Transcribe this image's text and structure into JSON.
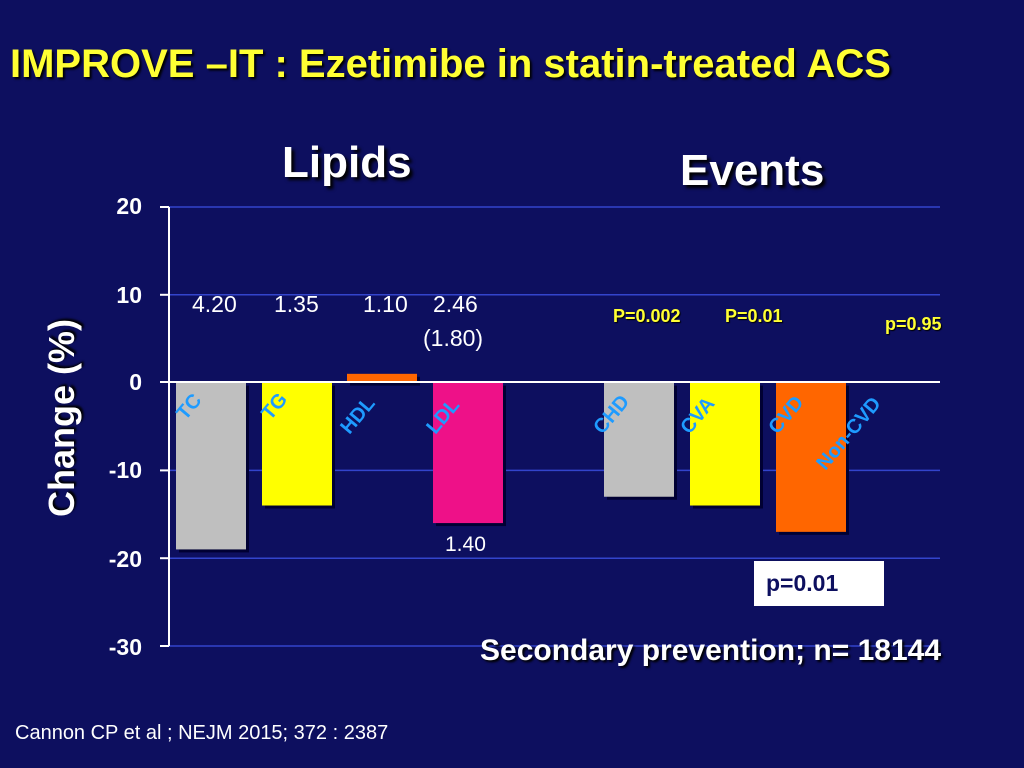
{
  "slide": {
    "title": "IMPROVE –IT : Ezetimibe in statin-treated ACS",
    "lipids_heading": "Lipids",
    "events_heading": "Events",
    "p_box": "p=0.01",
    "secondary_note": "Secondary prevention; n= 18144",
    "citation": "Cannon CP et al ; NEJM 2015; 372 : 2387"
  },
  "chart_data": {
    "type": "bar",
    "title": "",
    "xlabel": "",
    "ylabel": "Change (%)",
    "ylim": [
      -30,
      20
    ],
    "yticks": [
      "20",
      "10",
      "0",
      "-10",
      "-20",
      "-30"
    ],
    "grid": true,
    "categories": [
      "TC",
      "TG",
      "HDL",
      "LDL",
      "CHD",
      "CVA",
      "CVD",
      "Non-CVD"
    ],
    "values": [
      -19,
      -14,
      1,
      -16,
      -13,
      -14,
      -17,
      0
    ],
    "colors": {
      "TC": "#bfbfbf",
      "TG": "#ffff00",
      "HDL": "#ff6600",
      "LDL": "#ee1188",
      "CHD": "#bfbfbf",
      "CVA": "#ffff00",
      "CVD": "#ff6600",
      "Non-CVD": "#0d0f5f"
    },
    "value_labels": {
      "TC": "4.20",
      "TG": "1.35",
      "HDL": "1.10",
      "LDL_top": "2.46",
      "LDL_sub": "(1.80)",
      "LDL_bottom": "1.40"
    },
    "p_values": {
      "CHD": "P=0.002",
      "CVA": "P=0.01",
      "Non-CVD": "p=0.95"
    }
  }
}
